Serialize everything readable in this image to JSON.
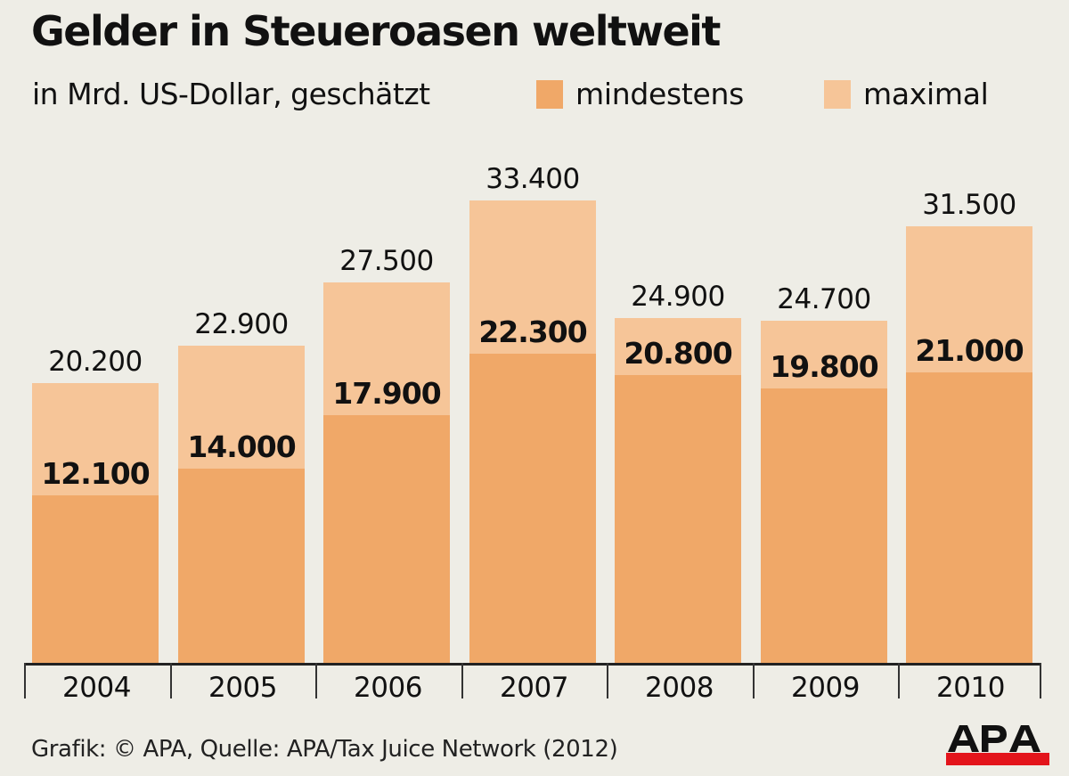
{
  "header": {
    "title": "Gelder in Steueroasen weltweit",
    "subtitle": "in Mrd. US-Dollar, geschätzt"
  },
  "legend": [
    {
      "label": "mindestens",
      "color": "#f0a868"
    },
    {
      "label": "maximal",
      "color": "#f6c598"
    }
  ],
  "bars": [
    {
      "year": "2004",
      "min": 12100,
      "max": 20200,
      "min_label": "12.100",
      "max_label": "20.200"
    },
    {
      "year": "2005",
      "min": 14000,
      "max": 22900,
      "min_label": "14.000",
      "max_label": "22.900"
    },
    {
      "year": "2006",
      "min": 17900,
      "max": 27500,
      "min_label": "17.900",
      "max_label": "27.500"
    },
    {
      "year": "2007",
      "min": 22300,
      "max": 33400,
      "min_label": "22.300",
      "max_label": "33.400"
    },
    {
      "year": "2008",
      "min": 20800,
      "max": 24900,
      "min_label": "20.800",
      "max_label": "24.900"
    },
    {
      "year": "2009",
      "min": 19800,
      "max": 24700,
      "min_label": "19.800",
      "max_label": "24.700"
    },
    {
      "year": "2010",
      "min": 21000,
      "max": 31500,
      "min_label": "21.000",
      "max_label": "31.500"
    }
  ],
  "footer": {
    "source": "Grafik: © APA, Quelle: APA/Tax Juice Network (2012)",
    "logo_text": "APA",
    "logo_bar_color": "#e3141b"
  },
  "chart_data": {
    "type": "bar",
    "title": "Gelder in Steueroasen weltweit",
    "subtitle": "in Mrd. US-Dollar, geschätzt",
    "xlabel": "",
    "ylabel": "Mrd. US-Dollar",
    "categories": [
      "2004",
      "2005",
      "2006",
      "2007",
      "2008",
      "2009",
      "2010"
    ],
    "series": [
      {
        "name": "mindestens",
        "color": "#f0a868",
        "values": [
          12100,
          14000,
          17900,
          22300,
          20800,
          19800,
          21000
        ]
      },
      {
        "name": "maximal",
        "color": "#f6c598",
        "values": [
          20200,
          22900,
          27500,
          33400,
          24900,
          24700,
          31500
        ]
      }
    ],
    "layout": "overlapping bars (maximal behind mindestens), data labels above/inside bars",
    "ylim": [
      0,
      35000
    ],
    "grid": false,
    "legend_position": "top-right",
    "source": "Grafik: © APA, Quelle: APA/Tax Juice Network (2012)"
  }
}
